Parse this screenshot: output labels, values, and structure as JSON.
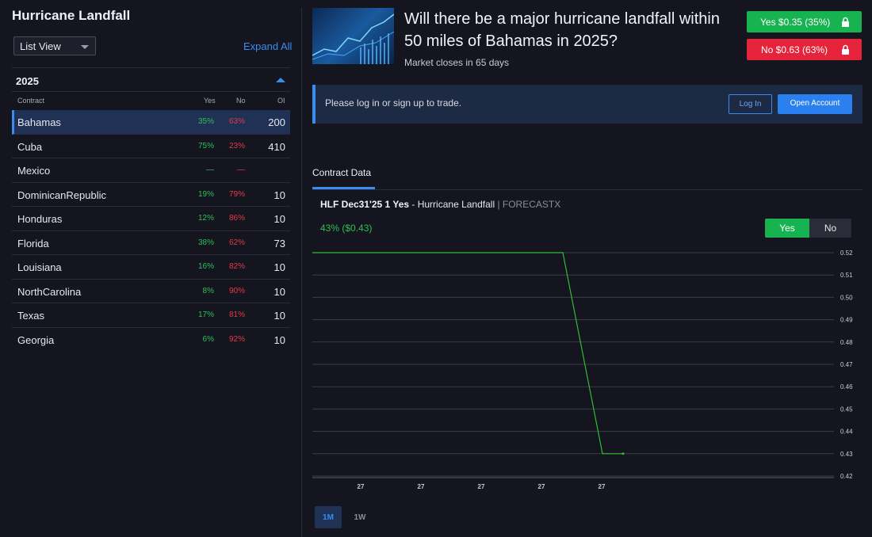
{
  "sidebar": {
    "title": "Hurricane Landfall",
    "view_select": "List View",
    "expand_all": "Expand All",
    "year": "2025",
    "columns": {
      "contract": "Contract",
      "yes": "Yes",
      "no": "No",
      "oi": "OI"
    },
    "rows": [
      {
        "name": "Bahamas",
        "yes": "35%",
        "no": "63%",
        "oi": "200"
      },
      {
        "name": "Cuba",
        "yes": "75%",
        "no": "23%",
        "oi": "410"
      },
      {
        "name": "Mexico",
        "yes": "—",
        "no": "—",
        "oi": ""
      },
      {
        "name": "DominicanRepublic",
        "yes": "19%",
        "no": "79%",
        "oi": "10"
      },
      {
        "name": "Honduras",
        "yes": "12%",
        "no": "86%",
        "oi": "10"
      },
      {
        "name": "Florida",
        "yes": "38%",
        "no": "62%",
        "oi": "73"
      },
      {
        "name": "Louisiana",
        "yes": "16%",
        "no": "82%",
        "oi": "10"
      },
      {
        "name": "NorthCarolina",
        "yes": "8%",
        "no": "90%",
        "oi": "10"
      },
      {
        "name": "Texas",
        "yes": "17%",
        "no": "81%",
        "oi": "10"
      },
      {
        "name": "Georgia",
        "yes": "6%",
        "no": "92%",
        "oi": "10"
      }
    ]
  },
  "market": {
    "title": "Will there be a major hurricane landfall within 50 miles of Bahamas in 2025?",
    "closes": "Market closes in 65 days",
    "yes_button": "Yes $0.35 (35%)",
    "no_button": "No $0.63 (63%)"
  },
  "banner": {
    "text": "Please log in or sign up to trade.",
    "login": "Log In",
    "open_account": "Open Account"
  },
  "contract_data": {
    "tab": "Contract Data",
    "code": "HLF Dec31'25 1 Yes",
    "sep": " - ",
    "name": "Hurricane Landfall",
    "source": " | FORECASTX",
    "price": "43% ($0.43)",
    "toggle_yes": "Yes",
    "toggle_no": "No",
    "range_1m": "1M",
    "range_1w": "1W"
  },
  "colors": {
    "accent": "#3b8cf0",
    "yes": "#17b351",
    "no": "#e5243b",
    "line": "#2fbf2f"
  },
  "chart_data": {
    "type": "line",
    "ylim": [
      0.42,
      0.52
    ],
    "y_ticks": [
      "0.52",
      "0.51",
      "0.50",
      "0.49",
      "0.48",
      "0.47",
      "0.46",
      "0.45",
      "0.44",
      "0.43",
      "0.42"
    ],
    "x_ticks": [
      "27",
      "27",
      "27",
      "27",
      "27"
    ],
    "series": [
      {
        "values": [
          0.52,
          0.52,
          0.43,
          0.43
        ]
      }
    ]
  }
}
